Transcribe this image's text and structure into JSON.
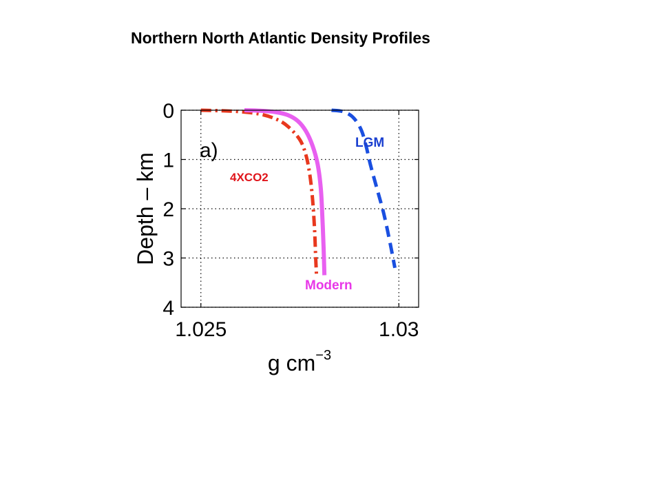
{
  "page": {
    "title": "Northern North Atlantic Density Profiles"
  },
  "chart_data": {
    "type": "line",
    "panel_label": "a)",
    "title": "",
    "xlabel": "g cm",
    "xlabel_superscript": "−3",
    "ylabel": "Depth – km",
    "xlim": [
      1.0245,
      1.0305
    ],
    "ylim": [
      4,
      0
    ],
    "y_inverted": true,
    "x_ticks": [
      1.025,
      1.03
    ],
    "x_tick_labels": [
      "1.025",
      "1.03"
    ],
    "y_ticks": [
      0,
      1,
      2,
      3,
      4
    ],
    "y_tick_labels": [
      "0",
      "1",
      "2",
      "3",
      "4"
    ],
    "grid": true,
    "grid_style": "dotted",
    "series": [
      {
        "name": "4XCO2",
        "color": "#e8381e",
        "line_style": "dashdot",
        "label_color": "#e0151b",
        "x": [
          1.025,
          1.0255,
          1.026,
          1.0265,
          1.0269,
          1.0272,
          1.0275,
          1.02765,
          1.02775,
          1.02782,
          1.02787,
          1.0279,
          1.02792
        ],
        "y": [
          0.0,
          0.01,
          0.03,
          0.08,
          0.18,
          0.33,
          0.6,
          0.9,
          1.3,
          1.8,
          2.4,
          3.0,
          3.35
        ]
      },
      {
        "name": "Modern",
        "color": "#e860f0",
        "line_style": "solid",
        "label_color": "#e838e8",
        "x": [
          1.0261,
          1.0265,
          1.0269,
          1.0272,
          1.02745,
          1.02765,
          1.02782,
          1.02795,
          1.02803,
          1.02807,
          1.0281,
          1.02812
        ],
        "y": [
          0.0,
          0.01,
          0.04,
          0.1,
          0.22,
          0.42,
          0.72,
          1.1,
          1.6,
          2.2,
          2.8,
          3.35
        ]
      },
      {
        "name": "LGM",
        "color": "#1a4fe0",
        "line_style": "dashed",
        "label_color": "#1a3fd0",
        "x": [
          1.0283,
          1.0286,
          1.02885,
          1.02905,
          1.02918,
          1.02928,
          1.02945,
          1.02962,
          1.02978,
          1.0299
        ],
        "y": [
          0.0,
          0.03,
          0.15,
          0.4,
          0.75,
          1.1,
          1.6,
          2.1,
          2.7,
          3.2
        ]
      }
    ]
  }
}
